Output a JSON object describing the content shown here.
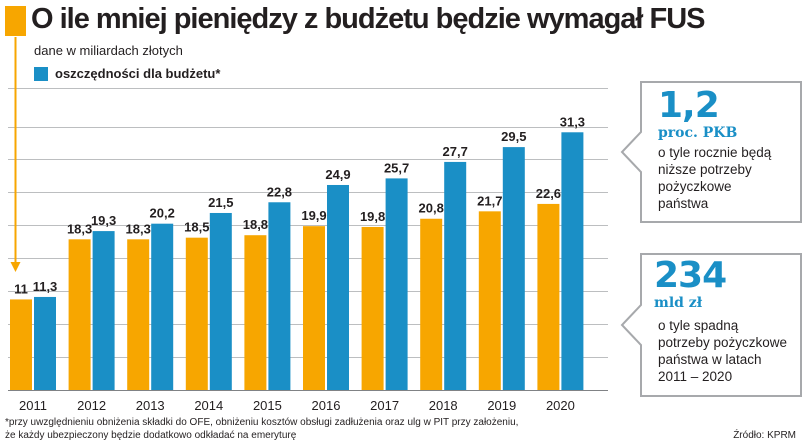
{
  "header": {
    "title": "O ile mniej pieniędzy z budżetu będzie wymagał FUS",
    "subtitle": "dane w miliardach złotych",
    "legend_label": "oszczędności dla budżetu*"
  },
  "colors": {
    "orange": "#f7a600",
    "blue": "#1a8fc6",
    "grid": "#bcbec0",
    "text": "#231f20"
  },
  "chart_data": {
    "type": "bar",
    "title": "O ile mniej pieniędzy z budżetu będzie wymagał FUS",
    "subtitle": "dane w miliardach złotych",
    "xlabel": "",
    "ylabel": "",
    "categories": [
      "2011",
      "2012",
      "2013",
      "2014",
      "2015",
      "2016",
      "2017",
      "2018",
      "2019",
      "2020"
    ],
    "series": [
      {
        "name": "",
        "color": "#f7a600",
        "values": [
          11,
          18.3,
          18.3,
          18.5,
          18.8,
          19.9,
          19.8,
          20.8,
          21.7,
          22.6
        ],
        "labels": [
          "11",
          "18,3",
          "18,3",
          "18,5",
          "18,8",
          "19,9",
          "19,8",
          "20,8",
          "21,7",
          "22,6"
        ]
      },
      {
        "name": "oszczędności dla budżetu*",
        "color": "#1a8fc6",
        "values": [
          11.3,
          19.3,
          20.2,
          21.5,
          22.8,
          24.9,
          25.7,
          27.7,
          29.5,
          31.3
        ],
        "labels": [
          "11,3",
          "19,3",
          "20,2",
          "21,5",
          "22,8",
          "24,9",
          "25,7",
          "27,7",
          "29,5",
          "31,3"
        ]
      }
    ],
    "ylim": [
      0,
      35
    ],
    "grid": true,
    "legend": "top-left"
  },
  "callouts": [
    {
      "value": "1,2",
      "unit": "proc. PKB",
      "lines": [
        "o tyle rocznie będą",
        "niższe potrzeby",
        "pożyczkowe",
        "państwa"
      ]
    },
    {
      "value": "234",
      "unit": "mld zł",
      "lines": [
        "o tyle spadną",
        "potrzeby pożyczkowe",
        "państwa w latach",
        "2011 – 2020"
      ]
    }
  ],
  "footnote": {
    "line1": "*przy uwzględnieniu obniżenia składki do OFE, obniżeniu kosztów obsługi zadłużenia oraz ulg w PIT przy założeniu,",
    "line2": "że każdy ubezpieczony będzie dodatkowo odkładać na emeryturę"
  },
  "source": "Źródło: KPRM"
}
